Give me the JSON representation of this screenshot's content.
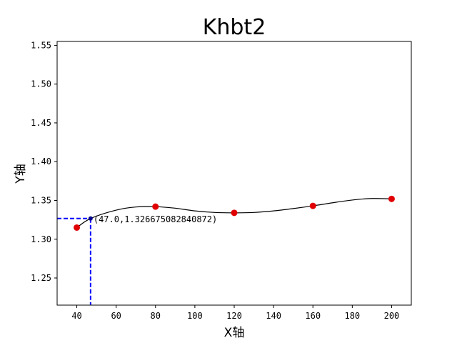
{
  "chart_data": {
    "type": "line",
    "title": "Khbt2",
    "xlabel": "X轴",
    "ylabel": "Y轴",
    "xlim": [
      30,
      210
    ],
    "ylim": [
      1.215,
      1.555
    ],
    "x_ticks": [
      40,
      60,
      80,
      100,
      120,
      140,
      160,
      180,
      200
    ],
    "x_tick_labels": [
      "40",
      "60",
      "80",
      "100",
      "120",
      "140",
      "160",
      "180",
      "200"
    ],
    "y_ticks": [
      1.25,
      1.3,
      1.35,
      1.4,
      1.45,
      1.5,
      1.55
    ],
    "y_tick_labels": [
      "1.25",
      "1.30",
      "1.35",
      "1.40",
      "1.45",
      "1.50",
      "1.55"
    ],
    "grid": false,
    "points": {
      "x": [
        40,
        80,
        120,
        160,
        200
      ],
      "y": [
        1.315,
        1.342,
        1.334,
        1.343,
        1.352
      ],
      "color": "#e00000"
    },
    "curve": {
      "x": [
        40,
        47,
        60,
        70,
        80,
        90,
        100,
        110,
        120,
        130,
        140,
        150,
        160,
        170,
        180,
        190,
        200
      ],
      "y": [
        1.315,
        1.3267,
        1.3375,
        1.3415,
        1.342,
        1.34,
        1.3365,
        1.3345,
        1.334,
        1.3345,
        1.3365,
        1.3395,
        1.343,
        1.347,
        1.3505,
        1.3525,
        1.352
      ],
      "color": "#000000"
    },
    "highlight": {
      "x": 47.0,
      "y": 1.326675082840872,
      "label": "(47.0,1.326675082840872)",
      "marker_color": "#00008b",
      "guide_color": "#0000ff"
    }
  }
}
